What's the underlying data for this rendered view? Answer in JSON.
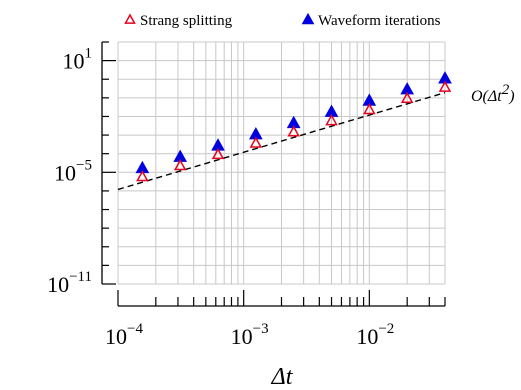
{
  "chart_data": {
    "type": "scatter",
    "xlabel": "Δt",
    "xscale": "log",
    "yscale": "log",
    "xlim": [
      0.0001,
      0.04
    ],
    "ylim": [
      1e-11,
      100
    ],
    "grid": true,
    "legend": "top",
    "x_ticks": [
      {
        "value": 0.0001,
        "base": "10",
        "exp": "−4"
      },
      {
        "value": 0.001,
        "base": "10",
        "exp": "−3"
      },
      {
        "value": 0.01,
        "base": "10",
        "exp": "−2"
      }
    ],
    "y_ticks": [
      {
        "value": 10,
        "base": "10",
        "exp": "1"
      },
      {
        "value": 1e-05,
        "base": "10",
        "exp": "−5"
      },
      {
        "value": 1e-11,
        "base": "10",
        "exp": "−11"
      }
    ],
    "series": [
      {
        "name": "Strang splitting",
        "marker": "triangle-open",
        "color": "#e8001c",
        "x": [
          0.00015625,
          0.0003125,
          0.000625,
          0.00125,
          0.0025,
          0.005,
          0.01,
          0.02,
          0.04
        ],
        "y": [
          5.5e-06,
          2.15e-05,
          8.5e-05,
          0.00035,
          0.0014,
          0.0056,
          0.022,
          0.088,
          0.35
        ]
      },
      {
        "name": "Waveform iterations",
        "marker": "triangle-filled",
        "color": "#0000e0",
        "x": [
          0.00015625,
          0.0003125,
          0.000625,
          0.00125,
          0.0025,
          0.005,
          0.01,
          0.02,
          0.04
        ],
        "y": [
          1.6e-05,
          6.4e-05,
          0.00026,
          0.00104,
          0.0042,
          0.0168,
          0.067,
          0.27,
          1.05
        ]
      }
    ],
    "reference_line": {
      "label_main": "O(Δt",
      "label_exp": "2",
      "label_close": ")",
      "style": "dashed",
      "color": "#000000",
      "x": [
        0.0001,
        0.04
      ],
      "y": [
        1.2e-06,
        0.19
      ]
    }
  }
}
